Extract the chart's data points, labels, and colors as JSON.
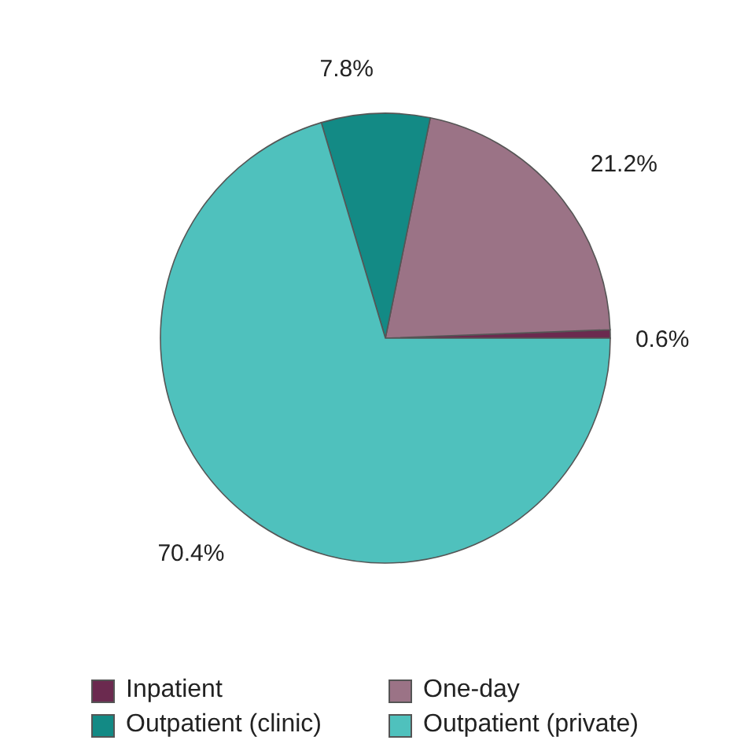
{
  "chart_data": {
    "type": "pie",
    "categories": [
      "Inpatient",
      "One-day",
      "Outpatient (clinic)",
      "Outpatient (private)"
    ],
    "values": [
      0.6,
      21.2,
      7.8,
      70.4
    ],
    "colors": [
      "#6b2a4f",
      "#9b7386",
      "#138a85",
      "#4fc1bd"
    ],
    "value_labels": [
      "0.6%",
      "21.2%",
      "7.8%",
      "70.4%"
    ],
    "legend": "bottom"
  }
}
